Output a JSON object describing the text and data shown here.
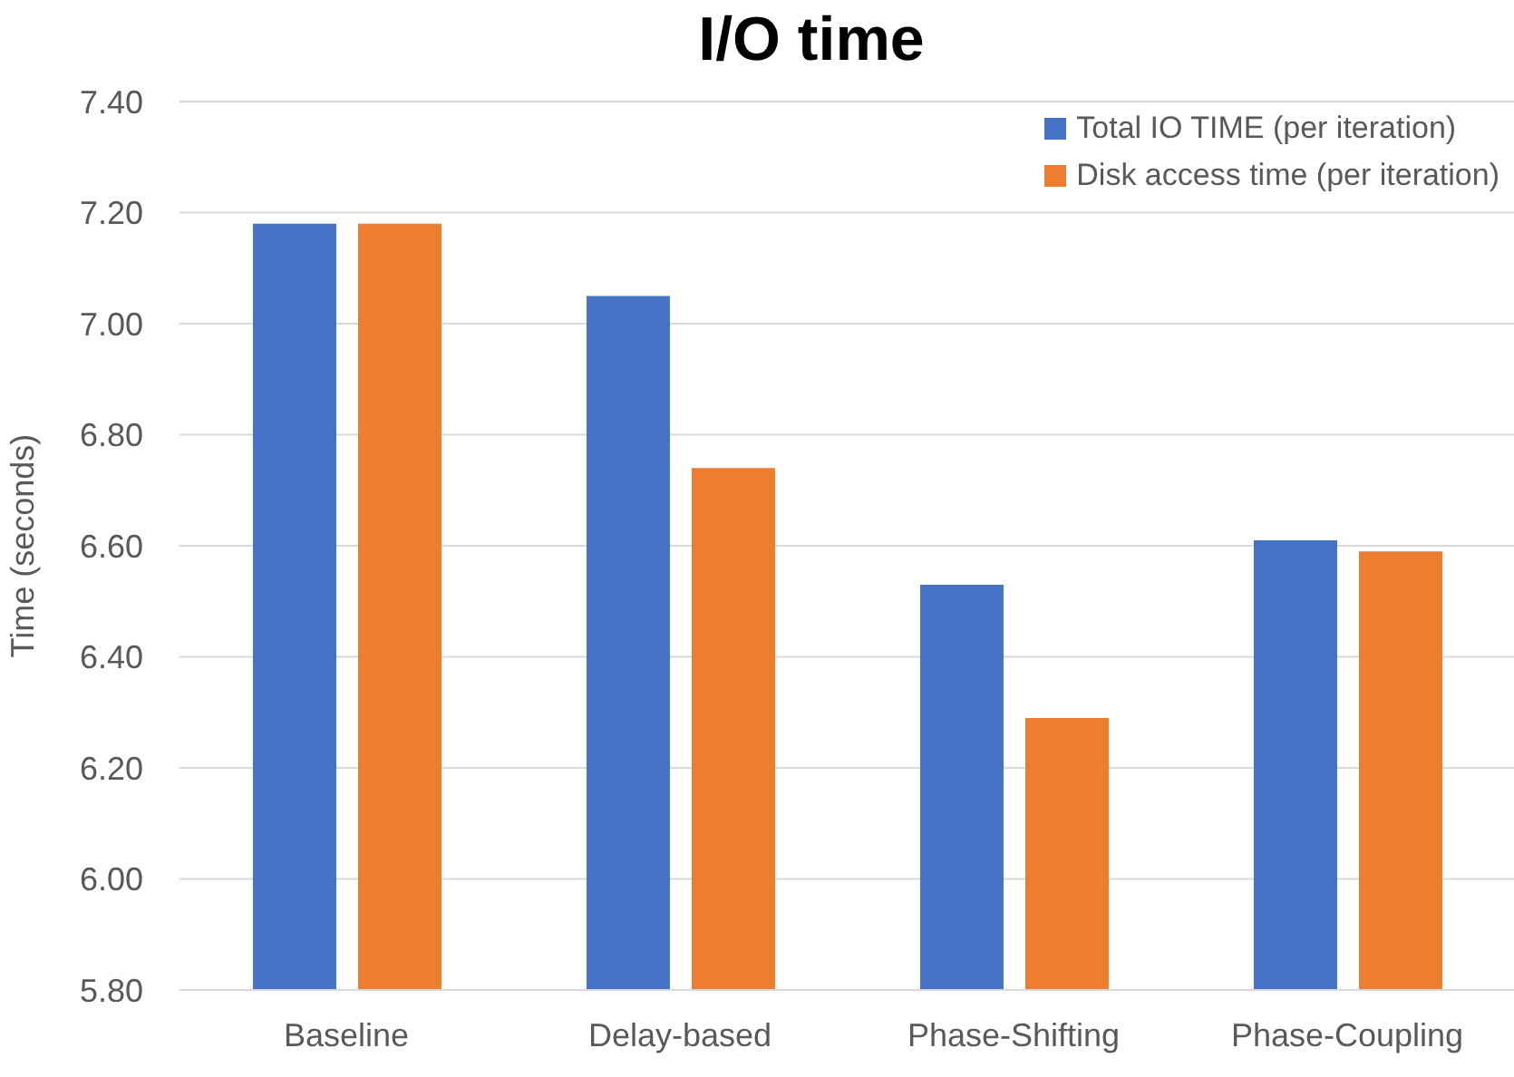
{
  "chart_data": {
    "type": "bar",
    "title": "I/O time",
    "ylabel": "Time (seconds)",
    "categories": [
      "Baseline",
      "Delay-based",
      "Phase-Shifting",
      "Phase-Coupling"
    ],
    "series": [
      {
        "name": "Total IO TIME (per iteration)",
        "color": "#4472c4",
        "values": [
          7.18,
          7.05,
          6.53,
          6.61
        ]
      },
      {
        "name": "Disk access time (per iteration)",
        "color": "#ed7d31",
        "values": [
          7.18,
          6.74,
          6.29,
          6.59
        ]
      }
    ],
    "ylim": [
      5.8,
      7.4
    ],
    "yticks": [
      {
        "value": 5.8,
        "label": "5.80"
      },
      {
        "value": 6.0,
        "label": "6.00"
      },
      {
        "value": 6.2,
        "label": "6.20"
      },
      {
        "value": 6.4,
        "label": "6.40"
      },
      {
        "value": 6.6,
        "label": "6.60"
      },
      {
        "value": 6.8,
        "label": "6.80"
      },
      {
        "value": 7.0,
        "label": "7.00"
      },
      {
        "value": 7.2,
        "label": "7.20"
      },
      {
        "value": 7.4,
        "label": "7.40"
      }
    ],
    "grid": "y",
    "legend": "top right"
  }
}
